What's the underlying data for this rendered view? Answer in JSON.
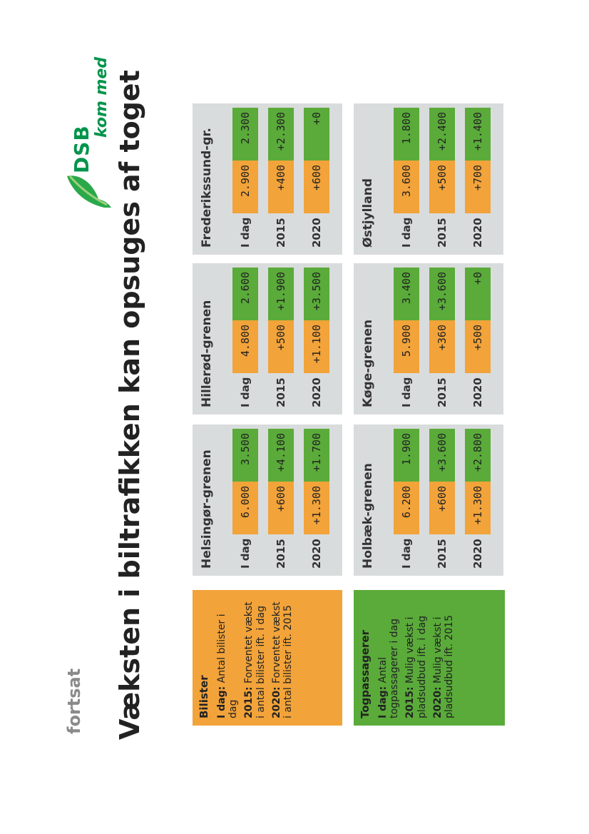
{
  "subtitle": "fortsat",
  "title": "Væksten i biltrafikken kan opsuges af toget",
  "logo": {
    "brand": "DSB",
    "tagline": "kom med",
    "color": "#00944a"
  },
  "colors": {
    "car": "#f2a33a",
    "train": "#5aab3a",
    "panel": "#d9dcdc"
  },
  "legends": {
    "car": {
      "title": "Bilister",
      "items": [
        {
          "key": "I dag:",
          "text": "Antal bilister i dag"
        },
        {
          "key": "2015:",
          "text": "Forventet vækst i antal bilister ift. i dag"
        },
        {
          "key": "2020:",
          "text": "Forventet vækst i antal bilister ift. 2015"
        }
      ]
    },
    "train": {
      "title": "Togpassagerer",
      "items": [
        {
          "key": "I dag:",
          "text": "Antal togpassagerer i dag"
        },
        {
          "key": "2015:",
          "text": "Mulig vækst i pladsudbud ift. i dag"
        },
        {
          "key": "2020:",
          "text": "Mulig vækst i pladsudbud ift. 2015"
        }
      ]
    }
  },
  "regions": [
    {
      "name": "Helsingør-grenen",
      "rows": [
        {
          "label": "I dag",
          "car": "6.000",
          "train": "3.500"
        },
        {
          "label": "2015",
          "car": "+600",
          "train": "+4.100"
        },
        {
          "label": "2020",
          "car": "+1.300",
          "train": "+1.700"
        }
      ]
    },
    {
      "name": "Hillerød-grenen",
      "rows": [
        {
          "label": "I dag",
          "car": "4.800",
          "train": "2.600"
        },
        {
          "label": "2015",
          "car": "+500",
          "train": "+1.900"
        },
        {
          "label": "2020",
          "car": "+1.100",
          "train": "+3.500"
        }
      ]
    },
    {
      "name": "Frederikssund-gr.",
      "rows": [
        {
          "label": "I dag",
          "car": "2.900",
          "train": "2.300"
        },
        {
          "label": "2015",
          "car": "+400",
          "train": "+2.300"
        },
        {
          "label": "2020",
          "car": "+600",
          "train": "+0"
        }
      ]
    },
    {
      "name": "Holbæk-grenen",
      "rows": [
        {
          "label": "I dag",
          "car": "6.200",
          "train": "1.900"
        },
        {
          "label": "2015",
          "car": "+600",
          "train": "+3.600"
        },
        {
          "label": "2020",
          "car": "+1.300",
          "train": "+2.800"
        }
      ]
    },
    {
      "name": "Køge-grenen",
      "rows": [
        {
          "label": "I dag",
          "car": "5.900",
          "train": "3.400"
        },
        {
          "label": "2015",
          "car": "+360",
          "train": "+3.600"
        },
        {
          "label": "2020",
          "car": "+500",
          "train": "+0"
        }
      ]
    },
    {
      "name": "Østjylland",
      "rows": [
        {
          "label": "I dag",
          "car": "3.600",
          "train": "1.800"
        },
        {
          "label": "2015",
          "car": "+500",
          "train": "+2.400"
        },
        {
          "label": "2020",
          "car": "+700",
          "train": "+1.400"
        }
      ]
    }
  ]
}
